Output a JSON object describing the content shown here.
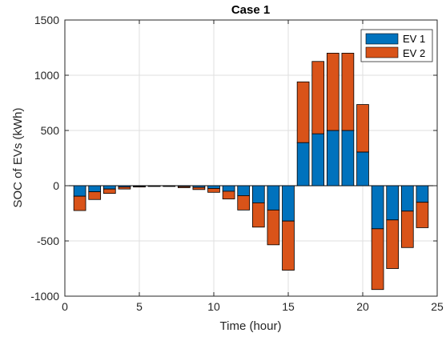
{
  "chart_data": {
    "type": "bar",
    "stacked": true,
    "title": "Case 1",
    "xlabel": "Time (hour)",
    "ylabel": "SOC of EVs (kWh)",
    "xlim": [
      0,
      25
    ],
    "ylim": [
      -1000,
      1500
    ],
    "xticks": [
      0,
      5,
      10,
      15,
      20,
      25
    ],
    "yticks": [
      -1000,
      -500,
      0,
      500,
      1000,
      1500
    ],
    "grid": true,
    "legend_position": "top-right",
    "x": [
      1,
      2,
      3,
      4,
      5,
      6,
      7,
      8,
      9,
      10,
      11,
      12,
      13,
      14,
      15,
      16,
      17,
      18,
      19,
      20,
      21,
      22,
      23,
      24
    ],
    "series": [
      {
        "name": "EV 1",
        "color": "#0072BD",
        "values": [
          -95,
          -55,
          -30,
          -12,
          -5,
          -3,
          -3,
          -8,
          -15,
          -25,
          -50,
          -90,
          -155,
          -220,
          -320,
          390,
          470,
          500,
          500,
          305,
          -390,
          -310,
          -230,
          -150
        ]
      },
      {
        "name": "EV 2",
        "color": "#D95319",
        "values": [
          -130,
          -70,
          -40,
          -18,
          -7,
          -4,
          -4,
          -10,
          -20,
          -35,
          -70,
          -130,
          -220,
          -315,
          -445,
          550,
          655,
          700,
          700,
          430,
          -550,
          -440,
          -330,
          -230
        ]
      }
    ]
  }
}
